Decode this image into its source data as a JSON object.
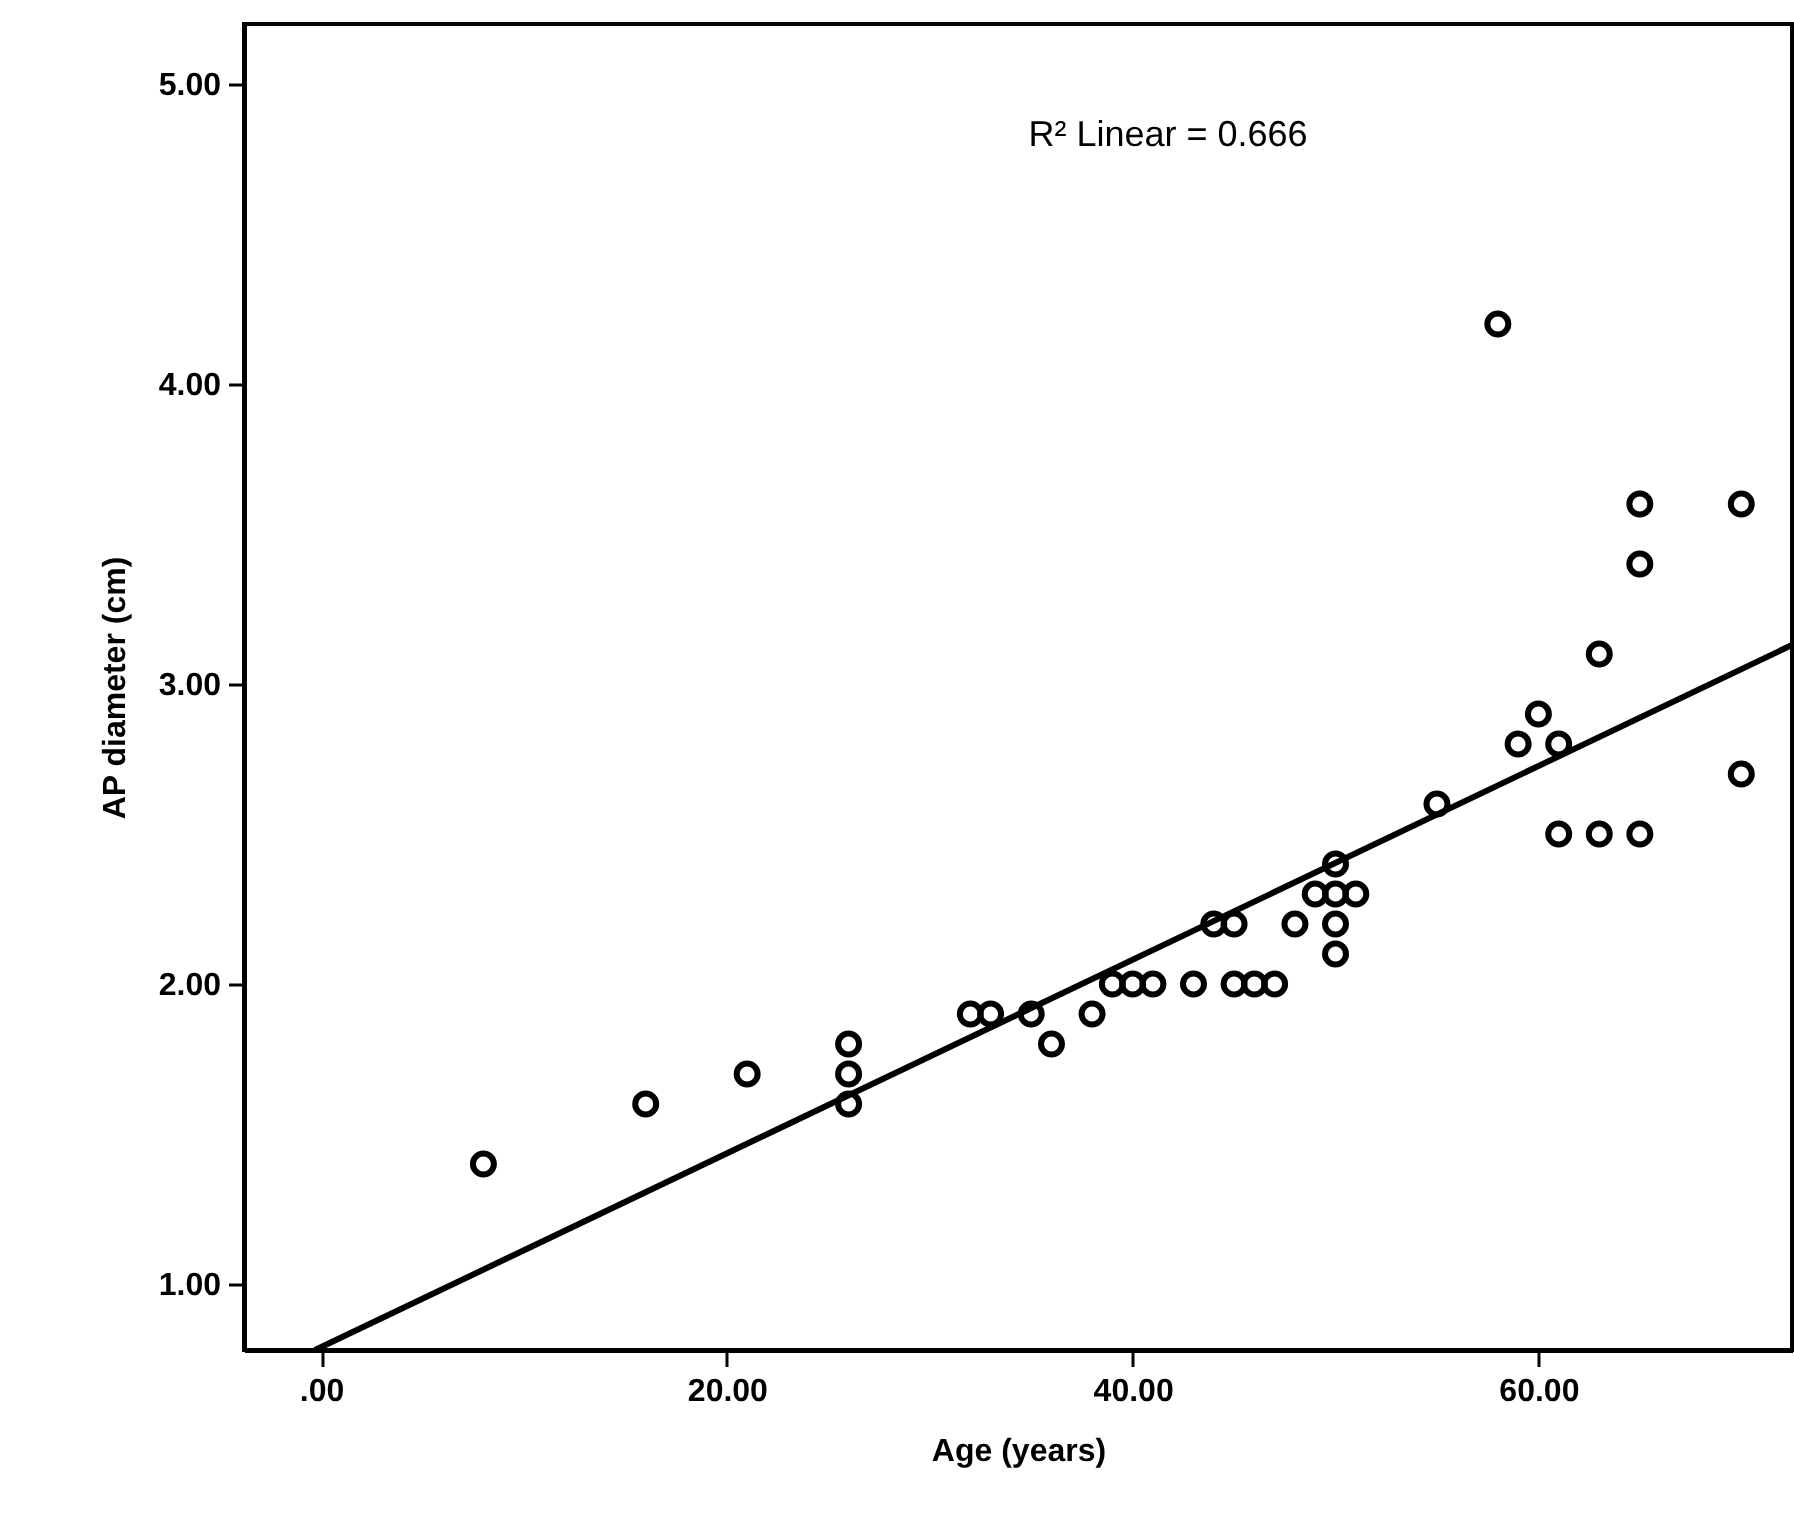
{
  "chart_data": {
    "type": "scatter",
    "xlabel": "Age (years)",
    "ylabel": "AP diameter (cm)",
    "annotations": [
      "R² Linear = 0.666"
    ],
    "marker": "circle",
    "grid": false,
    "xlim": [
      -3.8,
      72.5
    ],
    "ylim": [
      0.78,
      5.2
    ],
    "xticks": [
      {
        "value": 0,
        "label": ".00"
      },
      {
        "value": 20,
        "label": "20.00"
      },
      {
        "value": 40,
        "label": "40.00"
      },
      {
        "value": 60,
        "label": "60.00"
      }
    ],
    "yticks": [
      {
        "value": 1,
        "label": "1.00"
      },
      {
        "value": 2,
        "label": "2.00"
      },
      {
        "value": 3,
        "label": "3.00"
      },
      {
        "value": 4,
        "label": "4.00"
      },
      {
        "value": 5,
        "label": "5.00"
      }
    ],
    "series": [
      {
        "color": "#000000",
        "x": [
          8,
          16,
          21,
          26,
          26,
          26,
          32,
          33,
          35,
          36,
          38,
          39,
          40,
          41,
          43,
          44,
          45,
          45,
          46,
          47,
          48,
          49,
          50,
          50,
          50,
          50,
          51,
          55,
          58,
          59,
          60,
          61,
          61,
          63,
          63,
          65,
          65,
          65,
          70,
          70
        ],
        "values": [
          1.4,
          1.6,
          1.7,
          1.8,
          1.7,
          1.6,
          1.9,
          1.9,
          1.9,
          1.8,
          1.9,
          2.0,
          2.0,
          2.0,
          2.0,
          2.2,
          2.2,
          2.0,
          2.0,
          2.0,
          2.2,
          2.3,
          2.4,
          2.3,
          2.2,
          2.1,
          2.3,
          2.6,
          4.2,
          2.8,
          2.9,
          2.8,
          2.5,
          3.1,
          2.5,
          3.6,
          3.4,
          2.5,
          3.6,
          2.7
        ]
      },
      {
        "type": "line",
        "marker": "none",
        "color": "#000000",
        "x": [
          -0.3,
          72.5
        ],
        "values": [
          0.78,
          3.13
        ]
      }
    ]
  }
}
